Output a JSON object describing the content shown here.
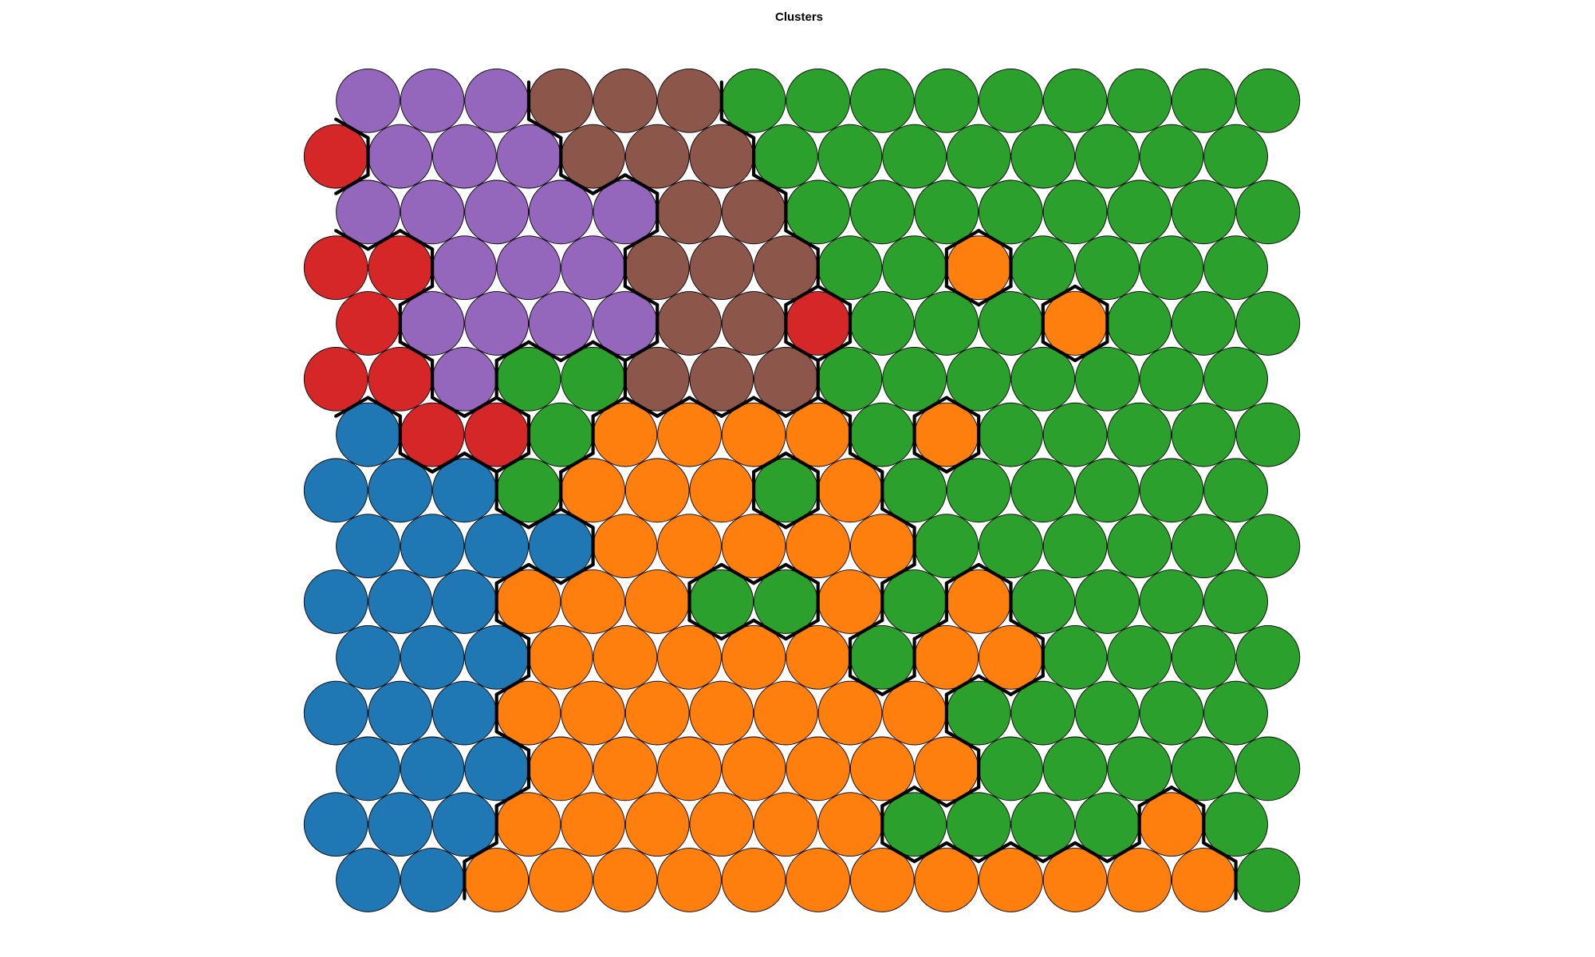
{
  "chart_data": {
    "type": "heatmap",
    "title": "Clusters",
    "grid_rows": 15,
    "grid_cols": 15,
    "layout": "hexagonal",
    "node_shape": "circle",
    "cluster_boundaries": true,
    "palette": {
      "blue": "#1f77b4",
      "orange": "#ff7f0e",
      "green": "#2ca02c",
      "red": "#d62728",
      "purple": "#9467bd",
      "brown": "#8c564b"
    },
    "cluster_map": [
      [
        "blue",
        "blue",
        "orange",
        "orange",
        "orange",
        "orange",
        "orange",
        "orange",
        "orange",
        "orange",
        "orange",
        "orange",
        "orange",
        "orange",
        "green"
      ],
      [
        "blue",
        "blue",
        "blue",
        "orange",
        "orange",
        "orange",
        "orange",
        "orange",
        "orange",
        "green",
        "green",
        "green",
        "green",
        "orange",
        "green"
      ],
      [
        "blue",
        "blue",
        "blue",
        "orange",
        "orange",
        "orange",
        "orange",
        "orange",
        "orange",
        "orange",
        "green",
        "green",
        "green",
        "green",
        "green"
      ],
      [
        "blue",
        "blue",
        "blue",
        "orange",
        "orange",
        "orange",
        "orange",
        "orange",
        "orange",
        "orange",
        "green",
        "green",
        "green",
        "green",
        "green"
      ],
      [
        "blue",
        "blue",
        "blue",
        "orange",
        "orange",
        "orange",
        "orange",
        "orange",
        "green",
        "orange",
        "orange",
        "green",
        "green",
        "green",
        "green"
      ],
      [
        "blue",
        "blue",
        "blue",
        "orange",
        "orange",
        "orange",
        "green",
        "green",
        "orange",
        "green",
        "orange",
        "green",
        "green",
        "green",
        "green"
      ],
      [
        "blue",
        "blue",
        "blue",
        "blue",
        "orange",
        "orange",
        "orange",
        "orange",
        "orange",
        "green",
        "green",
        "green",
        "green",
        "green",
        "green"
      ],
      [
        "blue",
        "blue",
        "blue",
        "green",
        "orange",
        "orange",
        "orange",
        "green",
        "orange",
        "green",
        "green",
        "green",
        "green",
        "green",
        "green"
      ],
      [
        "blue",
        "red",
        "red",
        "green",
        "orange",
        "orange",
        "orange",
        "orange",
        "green",
        "orange",
        "green",
        "green",
        "green",
        "green",
        "green"
      ],
      [
        "red",
        "red",
        "purple",
        "green",
        "green",
        "brown",
        "brown",
        "brown",
        "green",
        "green",
        "green",
        "green",
        "green",
        "green",
        "green"
      ],
      [
        "red",
        "purple",
        "purple",
        "purple",
        "purple",
        "brown",
        "brown",
        "red",
        "green",
        "green",
        "green",
        "orange",
        "green",
        "green",
        "green"
      ],
      [
        "red",
        "red",
        "purple",
        "purple",
        "purple",
        "brown",
        "brown",
        "brown",
        "green",
        "green",
        "orange",
        "green",
        "green",
        "green",
        "green"
      ],
      [
        "purple",
        "purple",
        "purple",
        "purple",
        "purple",
        "brown",
        "brown",
        "green",
        "green",
        "green",
        "green",
        "green",
        "green",
        "green",
        "green"
      ],
      [
        "red",
        "purple",
        "purple",
        "purple",
        "brown",
        "brown",
        "brown",
        "green",
        "green",
        "green",
        "green",
        "green",
        "green",
        "green",
        "green"
      ],
      [
        "purple",
        "purple",
        "purple",
        "brown",
        "brown",
        "brown",
        "green",
        "green",
        "green",
        "green",
        "green",
        "green",
        "green",
        "green",
        "green"
      ]
    ]
  }
}
